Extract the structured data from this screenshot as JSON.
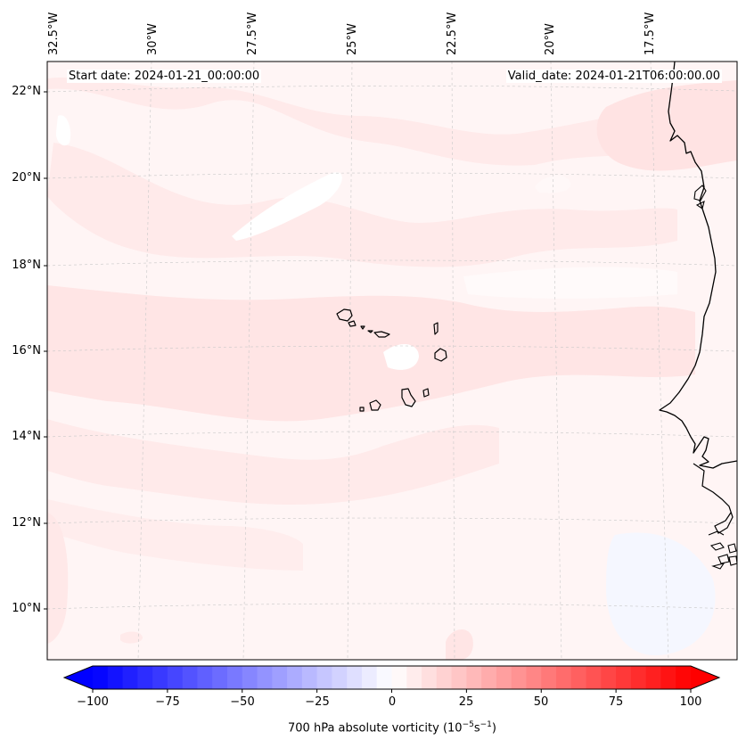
{
  "map": {
    "start_date": "Start date: 2024-01-21_00:00:00",
    "valid_date": "Valid_date: 2024-01-21T06:00:00.00",
    "lon_labels": [
      "32.5°W",
      "30°W",
      "27.5°W",
      "25°W",
      "22.5°W",
      "20°W",
      "17.5°W"
    ],
    "lat_labels": [
      "22°N",
      "20°N",
      "18°N",
      "16°N",
      "14°N",
      "12°N",
      "10°N"
    ],
    "field_colors": {
      "background": "#fff5f5",
      "light": "#ffeaea",
      "medium": "#ffdada",
      "white": "#ffffff",
      "faint_blue": "#f5f7ff"
    },
    "coastline_color": "#000000"
  },
  "colorbar": {
    "title_prefix": "700 hPa absolute vorticity (10",
    "title_exp1": "−5",
    "title_mid": "s",
    "title_exp2": "−1",
    "title_suffix": ")",
    "ticks": [
      "−100",
      "−75",
      "−50",
      "−25",
      "0",
      "25",
      "50",
      "75",
      "100"
    ],
    "range": [
      -100,
      100
    ],
    "cmap": "bwr",
    "extend": "both"
  }
}
